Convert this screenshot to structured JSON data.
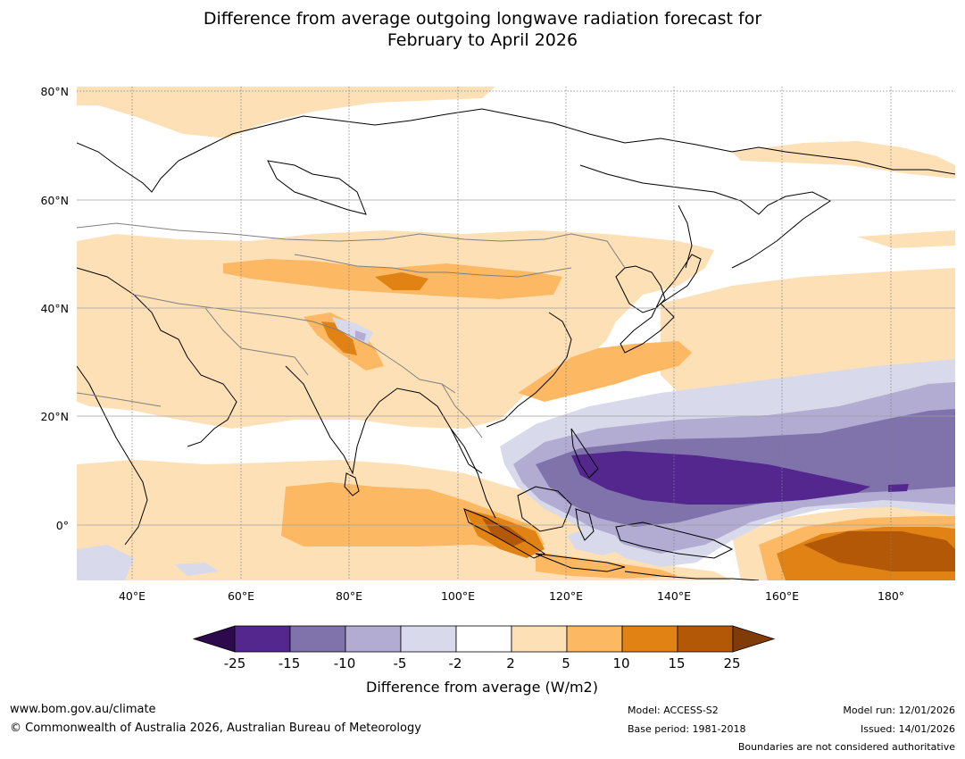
{
  "title_line1": "Difference from average outgoing longwave radiation forecast for",
  "title_line2": "February to April 2026",
  "map": {
    "lat_ticks": [
      "80°N",
      "60°N",
      "40°N",
      "20°N",
      "0°"
    ],
    "lon_ticks": [
      "40°E",
      "60°E",
      "80°E",
      "100°E",
      "120°E",
      "140°E",
      "160°E",
      "180°"
    ],
    "lat_values": [
      80,
      60,
      40,
      20,
      0
    ],
    "lon_values": [
      40,
      60,
      80,
      100,
      120,
      140,
      160,
      180
    ],
    "lon_range": [
      30,
      190
    ],
    "lat_range": [
      -10,
      81
    ]
  },
  "colorbar": {
    "ticks": [
      "-25",
      "-15",
      "-10",
      "-5",
      "-2",
      "2",
      "5",
      "10",
      "15",
      "25"
    ],
    "colors": [
      "#2d0a4e",
      "#54278f",
      "#8073ac",
      "#b2abd2",
      "#d8daeb",
      "#ffffff",
      "#fee0b6",
      "#fdb863",
      "#e08214",
      "#b35806",
      "#7f3b08"
    ],
    "label": "Difference from average (W/m2)"
  },
  "footer": {
    "url": "www.bom.gov.au/climate",
    "copyright": "© Commonwealth of Australia 2026, Australian Bureau of Meteorology",
    "model": "Model: ACCESS-S2",
    "base_period": "Base period: 1981-2018",
    "model_run": "Model run: 12/01/2026",
    "issued": "Issued: 14/01/2026",
    "disclaimer": "Boundaries are not considered authoritative"
  }
}
